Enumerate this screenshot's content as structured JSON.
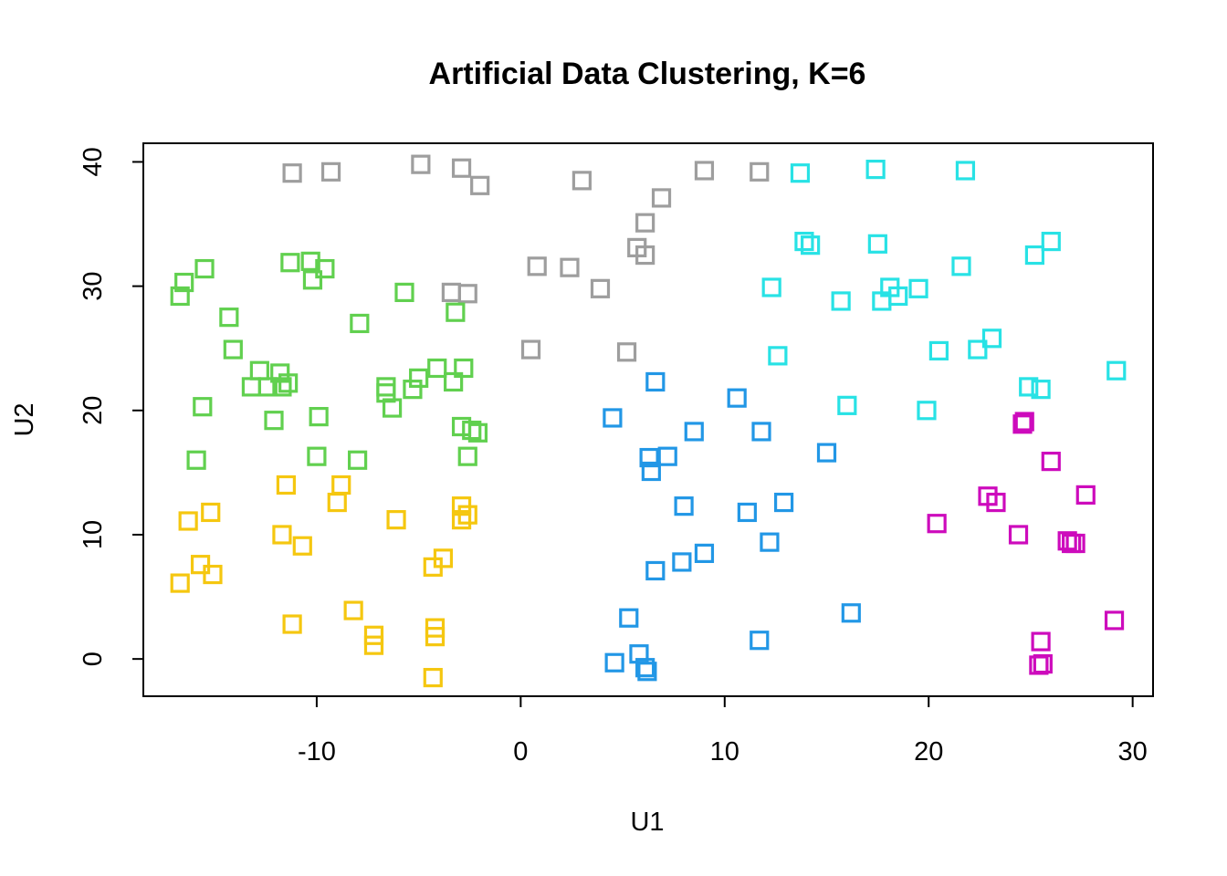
{
  "chart_data": {
    "type": "scatter",
    "title": "Artificial Data Clustering,  K=6",
    "xlabel": "U1",
    "ylabel": "U2",
    "xlim": [
      -18.5,
      31
    ],
    "ylim": [
      -3,
      41.5
    ],
    "x_ticks": [
      -10,
      0,
      10,
      20,
      30
    ],
    "y_ticks": [
      0,
      10,
      20,
      30,
      40
    ],
    "x_tick_labels": [
      "-10",
      "0",
      "10",
      "20",
      "30"
    ],
    "y_tick_labels": [
      "0",
      "10",
      "20",
      "30",
      "40"
    ],
    "grid": false,
    "marker": "open-square",
    "series": [
      {
        "color": "#9E9E9E",
        "points": [
          [
            -11.2,
            39.1
          ],
          [
            -9.3,
            39.2
          ],
          [
            -4.9,
            39.8
          ],
          [
            -2.9,
            39.5
          ],
          [
            -2.0,
            38.1
          ],
          [
            3.0,
            38.5
          ],
          [
            6.9,
            37.1
          ],
          [
            9.0,
            39.3
          ],
          [
            11.7,
            39.2
          ],
          [
            6.1,
            35.1
          ],
          [
            5.7,
            33.1
          ],
          [
            6.1,
            32.5
          ],
          [
            0.8,
            31.6
          ],
          [
            2.4,
            31.5
          ],
          [
            3.9,
            29.8
          ],
          [
            -3.4,
            29.5
          ],
          [
            -2.6,
            29.4
          ],
          [
            0.5,
            24.9
          ],
          [
            5.2,
            24.7
          ]
        ]
      },
      {
        "color": "#61D04F",
        "points": [
          [
            -16.7,
            29.2
          ],
          [
            -16.5,
            30.3
          ],
          [
            -15.5,
            31.4
          ],
          [
            -14.3,
            27.5
          ],
          [
            -14.1,
            24.9
          ],
          [
            -12.8,
            23.2
          ],
          [
            -13.2,
            21.9
          ],
          [
            -12.4,
            21.9
          ],
          [
            -11.8,
            23.0
          ],
          [
            -11.7,
            21.9
          ],
          [
            -11.4,
            22.2
          ],
          [
            -12.1,
            19.2
          ],
          [
            -11.3,
            31.9
          ],
          [
            -10.3,
            32.0
          ],
          [
            -9.6,
            31.4
          ],
          [
            -10.2,
            30.5
          ],
          [
            -7.9,
            27.0
          ],
          [
            -5.7,
            29.5
          ],
          [
            -6.6,
            21.9
          ],
          [
            -6.6,
            21.4
          ],
          [
            -6.3,
            20.2
          ],
          [
            -5.3,
            21.7
          ],
          [
            -5.0,
            22.6
          ],
          [
            -4.1,
            23.4
          ],
          [
            -3.3,
            22.3
          ],
          [
            -2.8,
            23.4
          ],
          [
            -3.2,
            27.9
          ],
          [
            -2.9,
            18.7
          ],
          [
            -2.4,
            18.4
          ],
          [
            -2.1,
            18.2
          ],
          [
            -2.6,
            16.3
          ],
          [
            -9.9,
            19.5
          ],
          [
            -10.0,
            16.3
          ],
          [
            -8.0,
            16.0
          ],
          [
            -15.6,
            20.3
          ],
          [
            -15.9,
            16.0
          ]
        ]
      },
      {
        "color": "#F5C710",
        "points": [
          [
            -16.3,
            11.1
          ],
          [
            -15.2,
            11.8
          ],
          [
            -15.7,
            7.6
          ],
          [
            -15.1,
            6.8
          ],
          [
            -16.7,
            6.1
          ],
          [
            -11.5,
            14.0
          ],
          [
            -8.8,
            14.0
          ],
          [
            -9.0,
            12.6
          ],
          [
            -11.7,
            10.0
          ],
          [
            -10.7,
            9.1
          ],
          [
            -6.1,
            11.2
          ],
          [
            -2.9,
            12.3
          ],
          [
            -2.9,
            11.2
          ],
          [
            -2.6,
            11.6
          ],
          [
            -3.8,
            8.1
          ],
          [
            -4.3,
            7.4
          ],
          [
            -11.2,
            2.8
          ],
          [
            -8.2,
            3.9
          ],
          [
            -7.2,
            1.9
          ],
          [
            -7.2,
            1.1
          ],
          [
            -4.2,
            2.5
          ],
          [
            -4.2,
            1.8
          ],
          [
            -4.3,
            -1.5
          ]
        ]
      },
      {
        "color": "#2297E6",
        "points": [
          [
            4.5,
            19.4
          ],
          [
            6.6,
            22.3
          ],
          [
            10.6,
            21.0
          ],
          [
            8.5,
            18.3
          ],
          [
            11.8,
            18.3
          ],
          [
            6.3,
            16.2
          ],
          [
            6.4,
            15.1
          ],
          [
            7.2,
            16.3
          ],
          [
            15.0,
            16.6
          ],
          [
            8.0,
            12.3
          ],
          [
            11.1,
            11.8
          ],
          [
            12.9,
            12.6
          ],
          [
            12.2,
            9.4
          ],
          [
            7.9,
            7.8
          ],
          [
            9.0,
            8.5
          ],
          [
            6.6,
            7.1
          ],
          [
            5.3,
            3.3
          ],
          [
            4.6,
            -0.3
          ],
          [
            5.8,
            0.4
          ],
          [
            6.1,
            -0.7
          ],
          [
            6.2,
            -1.0
          ],
          [
            11.7,
            1.5
          ],
          [
            16.2,
            3.7
          ]
        ]
      },
      {
        "color": "#28E2E5",
        "points": [
          [
            13.7,
            39.1
          ],
          [
            17.4,
            39.4
          ],
          [
            21.8,
            39.3
          ],
          [
            13.9,
            33.6
          ],
          [
            14.2,
            33.3
          ],
          [
            17.5,
            33.4
          ],
          [
            21.6,
            31.6
          ],
          [
            25.2,
            32.5
          ],
          [
            26.0,
            33.6
          ],
          [
            12.3,
            29.9
          ],
          [
            15.7,
            28.8
          ],
          [
            18.1,
            29.9
          ],
          [
            17.7,
            28.8
          ],
          [
            18.5,
            29.2
          ],
          [
            19.5,
            29.8
          ],
          [
            20.5,
            24.8
          ],
          [
            22.4,
            24.9
          ],
          [
            23.1,
            25.8
          ],
          [
            12.6,
            24.4
          ],
          [
            16.0,
            20.4
          ],
          [
            19.9,
            20.0
          ],
          [
            24.9,
            21.9
          ],
          [
            25.5,
            21.7
          ],
          [
            29.2,
            23.2
          ]
        ]
      },
      {
        "color": "#CD0BBC",
        "points": [
          [
            24.6,
            18.9
          ],
          [
            24.7,
            19.1
          ],
          [
            26.0,
            15.9
          ],
          [
            22.9,
            13.1
          ],
          [
            23.3,
            12.6
          ],
          [
            27.7,
            13.2
          ],
          [
            20.4,
            10.9
          ],
          [
            24.4,
            10.0
          ],
          [
            26.8,
            9.5
          ],
          [
            27.0,
            9.3
          ],
          [
            27.2,
            9.3
          ],
          [
            29.1,
            3.1
          ],
          [
            25.5,
            1.4
          ],
          [
            25.4,
            -0.5
          ],
          [
            25.6,
            -0.4
          ]
        ]
      }
    ]
  }
}
